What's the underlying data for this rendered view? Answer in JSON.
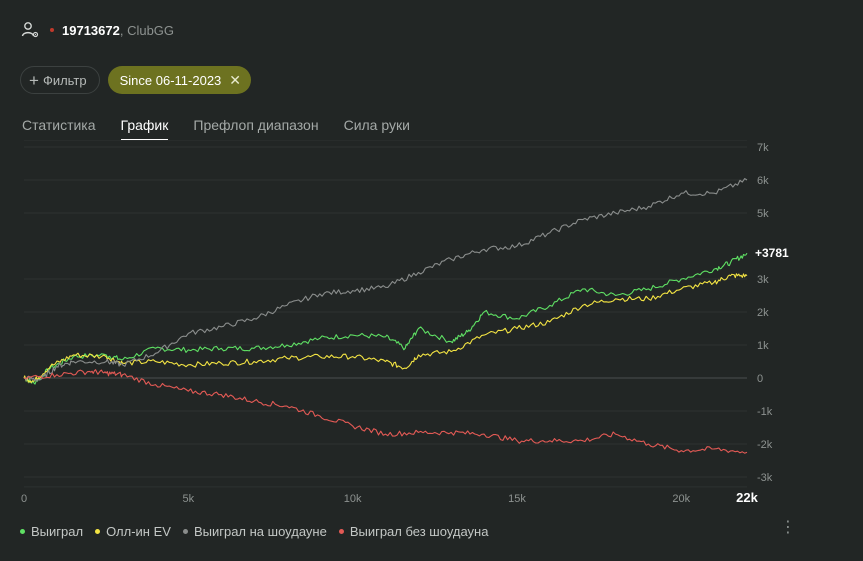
{
  "header": {
    "player_id": "19713672",
    "site": ", ClubGG"
  },
  "filters": {
    "filter_label": "Фильтр",
    "active_chip": "Since 06-11-2023"
  },
  "tabs": [
    {
      "label": "Статистика",
      "active": false
    },
    {
      "label": "График",
      "active": true
    },
    {
      "label": "Префлоп диапазон",
      "active": false
    },
    {
      "label": "Сила руки",
      "active": false
    }
  ],
  "colors": {
    "won": "#5fe064",
    "allin_ev": "#f3e443",
    "won_showdown": "#8a8d8c",
    "won_no_showdown": "#e35a55",
    "accent_chip": "#6d7220"
  },
  "chart_data": {
    "type": "line",
    "x_range": [
      0,
      22000
    ],
    "y_range": [
      -3000,
      7000
    ],
    "x_ticks": [
      {
        "value": 0,
        "label": "0"
      },
      {
        "value": 5000,
        "label": "5k"
      },
      {
        "value": 10000,
        "label": "10k"
      },
      {
        "value": 15000,
        "label": "15k"
      },
      {
        "value": 20000,
        "label": "20k"
      }
    ],
    "x_end_label": "22k",
    "y_ticks": [
      {
        "value": 7000,
        "label": "7k"
      },
      {
        "value": 6000,
        "label": "6k"
      },
      {
        "value": 5000,
        "label": "5k"
      },
      {
        "value": 3000,
        "label": "3k"
      },
      {
        "value": 2000,
        "label": "2k"
      },
      {
        "value": 1000,
        "label": "1k"
      },
      {
        "value": 0,
        "label": "0"
      },
      {
        "value": -1000,
        "label": "-1k"
      },
      {
        "value": -2000,
        "label": "-2k"
      },
      {
        "value": -3000,
        "label": "-3k"
      }
    ],
    "end_label": "+3781",
    "grid": true,
    "legend_position": "bottom-left",
    "series": [
      {
        "name": "Выиграл",
        "color": "#5fe064",
        "x": [
          0,
          300,
          800,
          1500,
          2500,
          3000,
          4000,
          5000,
          6000,
          7000,
          8000,
          9000,
          10000,
          11000,
          11600,
          12000,
          13000,
          13500,
          14000,
          15000,
          16000,
          17000,
          18000,
          19000,
          20000,
          21000,
          21500,
          22000
        ],
        "y": [
          0,
          -150,
          300,
          650,
          700,
          550,
          900,
          850,
          900,
          900,
          1000,
          1200,
          1300,
          1250,
          900,
          1500,
          1100,
          1400,
          2000,
          1800,
          2200,
          2700,
          2500,
          2700,
          3000,
          3300,
          3500,
          3781
        ]
      },
      {
        "name": "Олл-ин EV",
        "color": "#f3e443",
        "x": [
          0,
          300,
          800,
          1500,
          2500,
          3000,
          4000,
          5000,
          6000,
          7000,
          8000,
          9000,
          10000,
          11000,
          11600,
          12000,
          13000,
          14000,
          15000,
          16000,
          17000,
          18000,
          19000,
          20000,
          21000,
          21500,
          22000
        ],
        "y": [
          0,
          -100,
          350,
          700,
          650,
          450,
          500,
          400,
          450,
          500,
          600,
          650,
          650,
          500,
          300,
          700,
          800,
          1300,
          1500,
          1700,
          2200,
          2400,
          2400,
          2700,
          2900,
          3100,
          3100
        ]
      },
      {
        "name": "Выиграл на шоудауне",
        "color": "#8a8d8c",
        "x": [
          0,
          500,
          1000,
          1500,
          2500,
          3000,
          4000,
          5000,
          6000,
          7000,
          8000,
          9000,
          10000,
          11000,
          12000,
          13000,
          14000,
          15000,
          16000,
          17000,
          18000,
          19000,
          20000,
          21000,
          22000
        ],
        "y": [
          0,
          -50,
          350,
          500,
          500,
          400,
          750,
          1350,
          1550,
          1800,
          2200,
          2550,
          2650,
          2750,
          3200,
          3600,
          3900,
          4000,
          4400,
          4800,
          5000,
          5200,
          5600,
          5600,
          6000
        ]
      },
      {
        "name": "Выиграл без шоудауна",
        "color": "#e35a55",
        "x": [
          0,
          1000,
          2000,
          2500,
          3000,
          4000,
          5000,
          6000,
          7000,
          8000,
          9000,
          10000,
          11000,
          12000,
          13000,
          14000,
          15000,
          16000,
          17000,
          18000,
          19000,
          20000,
          21000,
          22000
        ],
        "y": [
          0,
          100,
          200,
          150,
          100,
          -200,
          -400,
          -500,
          -700,
          -850,
          -1150,
          -1450,
          -1700,
          -1650,
          -1650,
          -1700,
          -1900,
          -1900,
          -1900,
          -1700,
          -2000,
          -2200,
          -2150,
          -2250
        ]
      }
    ]
  }
}
